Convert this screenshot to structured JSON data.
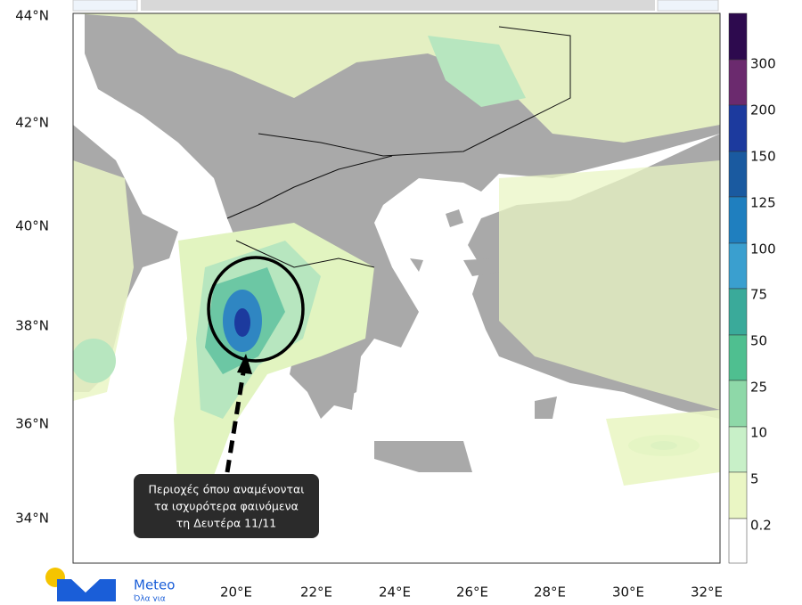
{
  "map": {
    "lat_labels": [
      "44°N",
      "42°N",
      "40°N",
      "38°N",
      "36°N",
      "34°N"
    ],
    "lon_labels": [
      "20°E",
      "22°E",
      "24°E",
      "26°E",
      "28°E",
      "30°E",
      "32°E"
    ],
    "legend_labels": [
      "300",
      "200",
      "150",
      "125",
      "100",
      "75",
      "50",
      "25",
      "10",
      "5",
      "0.2"
    ],
    "annotation": [
      "Περιοχές όπου αναμένονται",
      "τα ισχυρότερα φαινόμενα",
      "τη Δευτέρα  11/11"
    ]
  },
  "logo": {
    "name": "Meteo",
    "tagline": "Όλα για"
  }
}
